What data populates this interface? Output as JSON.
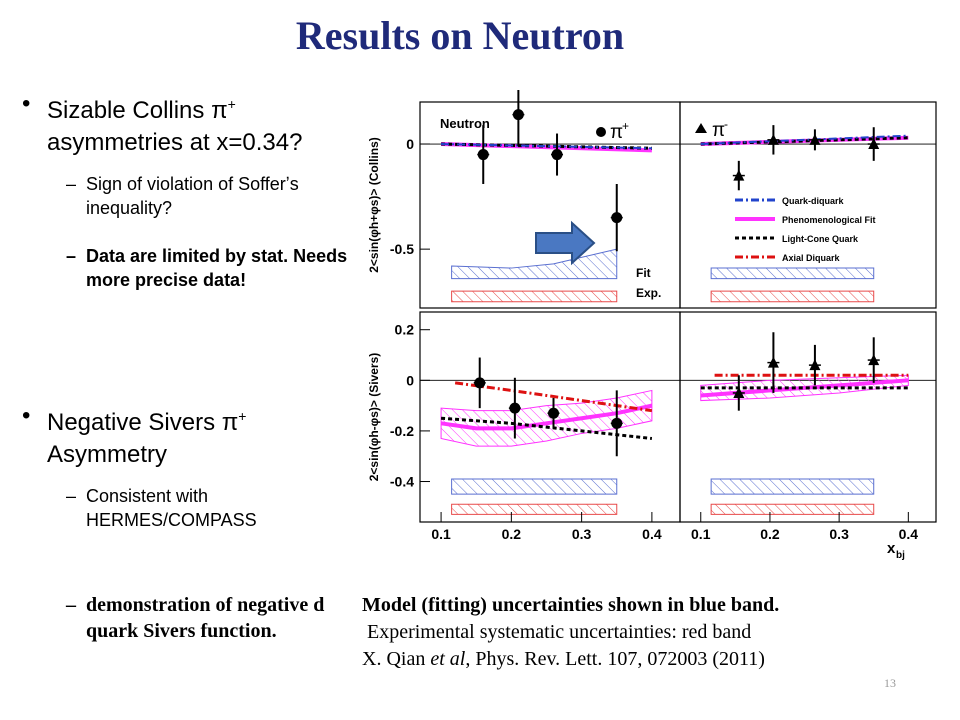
{
  "slide": {
    "title": "Results on Neutron",
    "page_number": "13"
  },
  "bullets": [
    {
      "text_parts": [
        "Sizable Collins π",
        "+",
        " asymmetries at x=0.34?"
      ],
      "subs": [
        {
          "text": "Sign of violation of Sofferʼs inequality?"
        },
        {
          "text": "Data are limited by stat. Needs more precise data!"
        }
      ]
    },
    {
      "text_parts": [
        "Negative Sivers π",
        "+",
        " Asymmetry"
      ],
      "subs": [
        {
          "text": "Consistent with HERMES/COMPASS"
        },
        {
          "text": "demonstration of negative d quark Sivers function."
        }
      ]
    }
  ],
  "caption": {
    "line1": "Model (fitting) uncertainties shown in blue band.",
    "line2": " Experimental systematic uncertainties: red band",
    "line3_a": "X. Qian ",
    "line3_b": "et al",
    "line3_c": ", Phys. Rev. Lett. 107, 072003 (2011)"
  },
  "colors": {
    "title": "#1f2a7a",
    "data": "#000000",
    "phenomenological_fit": "#ff33ff",
    "quark_diquark": "#2244cc",
    "axial_diquark": "#dd1111",
    "light_cone": "#000000",
    "model_band": "#5a6fd0",
    "exp_band": "#e84a4a",
    "arrow": "#4a78c2"
  },
  "chart_data": {
    "type": "scatter",
    "xlabel": "x",
    "xlabel_sub": "bj",
    "xlim": [
      0.07,
      0.44
    ],
    "x_ticks": [
      "0.1",
      "0.2",
      "0.3",
      "0.4"
    ],
    "labels": {
      "neutron": "Neutron",
      "pi_plus_symbol": "π",
      "pi_plus_sup": "+",
      "pi_minus_symbol": "π",
      "pi_minus_sup": "-",
      "fit": "Fit",
      "exp": "Exp."
    },
    "legend": {
      "placement": "top-right panel",
      "entries": [
        "Quark-diquark",
        "Phenomenological Fit",
        "Light-Cone Quark",
        "Axial Diquark"
      ]
    },
    "panels": [
      {
        "id": "collins-piplus",
        "ylabel": "2<sin(φh+φs)> (Collins)",
        "ylim": [
          -0.78,
          0.2
        ],
        "y_ticks": [
          0,
          -0.5
        ],
        "y_tick_labels": [
          "0",
          "-0.5"
        ],
        "data": {
          "marker": "circle",
          "x": [
            0.16,
            0.21,
            0.265,
            0.35
          ],
          "y": [
            -0.05,
            0.14,
            -0.05,
            -0.35
          ],
          "err": [
            0.14,
            0.15,
            0.1,
            0.16
          ]
        },
        "models": {
          "phenomenological_fit": {
            "x": [
              0.1,
              0.4
            ],
            "y": [
              0.0,
              -0.03
            ]
          },
          "light_cone": {
            "x": [
              0.1,
              0.4
            ],
            "y": [
              0.0,
              -0.02
            ]
          },
          "quark_diquark": {
            "x": [
              0.1,
              0.4
            ],
            "y": [
              0.0,
              -0.02
            ]
          }
        },
        "bands": {
          "model": {
            "x": [
              0.115,
              0.2,
              0.26,
              0.35
            ],
            "upper": [
              -0.58,
              -0.59,
              -0.57,
              -0.5
            ],
            "lower": [
              -0.64,
              -0.64,
              -0.64,
              -0.64
            ]
          },
          "exp": {
            "x": [
              0.115,
              0.2,
              0.26,
              0.35
            ],
            "upper": [
              -0.7,
              -0.7,
              -0.7,
              -0.7
            ],
            "lower": [
              -0.75,
              -0.75,
              -0.75,
              -0.75
            ]
          }
        }
      },
      {
        "id": "collins-piminus",
        "ylim": [
          -0.78,
          0.2
        ],
        "data": {
          "marker": "triangle",
          "x": [
            0.155,
            0.205,
            0.265,
            0.35
          ],
          "y": [
            -0.15,
            0.02,
            0.02,
            0.0
          ],
          "err": [
            0.07,
            0.07,
            0.05,
            0.08
          ]
        },
        "models": {
          "phenomenological_fit": {
            "x": [
              0.1,
              0.4
            ],
            "y": [
              0.0,
              0.03
            ]
          },
          "light_cone": {
            "x": [
              0.1,
              0.4
            ],
            "y": [
              0.0,
              0.03
            ]
          },
          "quark_diquark": {
            "x": [
              0.1,
              0.4
            ],
            "y": [
              0.0,
              0.04
            ]
          }
        },
        "bands": {
          "model": {
            "x": [
              0.115,
              0.35
            ],
            "upper": [
              -0.59,
              -0.59
            ],
            "lower": [
              -0.64,
              -0.64
            ]
          },
          "exp": {
            "x": [
              0.115,
              0.35
            ],
            "upper": [
              -0.7,
              -0.7
            ],
            "lower": [
              -0.75,
              -0.75
            ]
          }
        }
      },
      {
        "id": "sivers-piplus",
        "ylabel": "2<sin(φh-φs)> (Sivers)",
        "ylim": [
          -0.56,
          0.27
        ],
        "y_ticks": [
          0.2,
          0,
          -0.2,
          -0.4
        ],
        "y_tick_labels": [
          "0.2",
          "0",
          "-0.2",
          "-0.4"
        ],
        "data": {
          "marker": "circle",
          "x": [
            0.155,
            0.205,
            0.26,
            0.35
          ],
          "y": [
            -0.01,
            -0.11,
            -0.13,
            -0.17
          ],
          "err": [
            0.1,
            0.12,
            0.06,
            0.13
          ]
        },
        "models": {
          "phenomenological_fit": {
            "x": [
              0.1,
              0.15,
              0.2,
              0.25,
              0.3,
              0.35,
              0.4
            ],
            "y": [
              -0.17,
              -0.19,
              -0.19,
              -0.17,
              -0.15,
              -0.13,
              -0.1
            ]
          },
          "light_cone": {
            "x": [
              0.1,
              0.2,
              0.3,
              0.4
            ],
            "y": [
              -0.15,
              -0.17,
              -0.2,
              -0.23
            ]
          },
          "axial_diquark": {
            "x": [
              0.12,
              0.2,
              0.3,
              0.4
            ],
            "y": [
              -0.01,
              -0.04,
              -0.08,
              -0.12
            ]
          }
        },
        "fit_band": {
          "x": [
            0.1,
            0.15,
            0.2,
            0.25,
            0.3,
            0.35,
            0.4
          ],
          "upper": [
            -0.11,
            -0.12,
            -0.12,
            -0.1,
            -0.09,
            -0.07,
            -0.04
          ],
          "lower": [
            -0.23,
            -0.26,
            -0.26,
            -0.24,
            -0.21,
            -0.19,
            -0.16
          ]
        },
        "bands": {
          "model": {
            "x": [
              0.115,
              0.35
            ],
            "upper": [
              -0.39,
              -0.39
            ],
            "lower": [
              -0.45,
              -0.45
            ]
          },
          "exp": {
            "x": [
              0.115,
              0.35
            ],
            "upper": [
              -0.49,
              -0.49
            ],
            "lower": [
              -0.53,
              -0.53
            ]
          }
        }
      },
      {
        "id": "sivers-piminus",
        "ylim": [
          -0.56,
          0.27
        ],
        "data": {
          "marker": "triangle",
          "x": [
            0.155,
            0.205,
            0.265,
            0.35
          ],
          "y": [
            -0.05,
            0.07,
            0.06,
            0.08
          ],
          "err": [
            0.07,
            0.12,
            0.08,
            0.09
          ]
        },
        "models": {
          "phenomenological_fit": {
            "x": [
              0.1,
              0.2,
              0.3,
              0.4
            ],
            "y": [
              -0.06,
              -0.04,
              -0.02,
              0.0
            ]
          },
          "light_cone": {
            "x": [
              0.1,
              0.4
            ],
            "y": [
              -0.03,
              -0.03
            ]
          },
          "axial_diquark": {
            "x": [
              0.12,
              0.4
            ],
            "y": [
              0.02,
              0.02
            ]
          }
        },
        "fit_band": {
          "x": [
            0.1,
            0.2,
            0.3,
            0.4
          ],
          "upper": [
            -0.02,
            0.0,
            0.01,
            0.02
          ],
          "lower": [
            -0.08,
            -0.07,
            -0.05,
            -0.02
          ]
        },
        "bands": {
          "model": {
            "x": [
              0.115,
              0.35
            ],
            "upper": [
              -0.39,
              -0.39
            ],
            "lower": [
              -0.45,
              -0.45
            ]
          },
          "exp": {
            "x": [
              0.115,
              0.35
            ],
            "upper": [
              -0.49,
              -0.49
            ],
            "lower": [
              -0.53,
              -0.53
            ]
          }
        }
      }
    ]
  }
}
